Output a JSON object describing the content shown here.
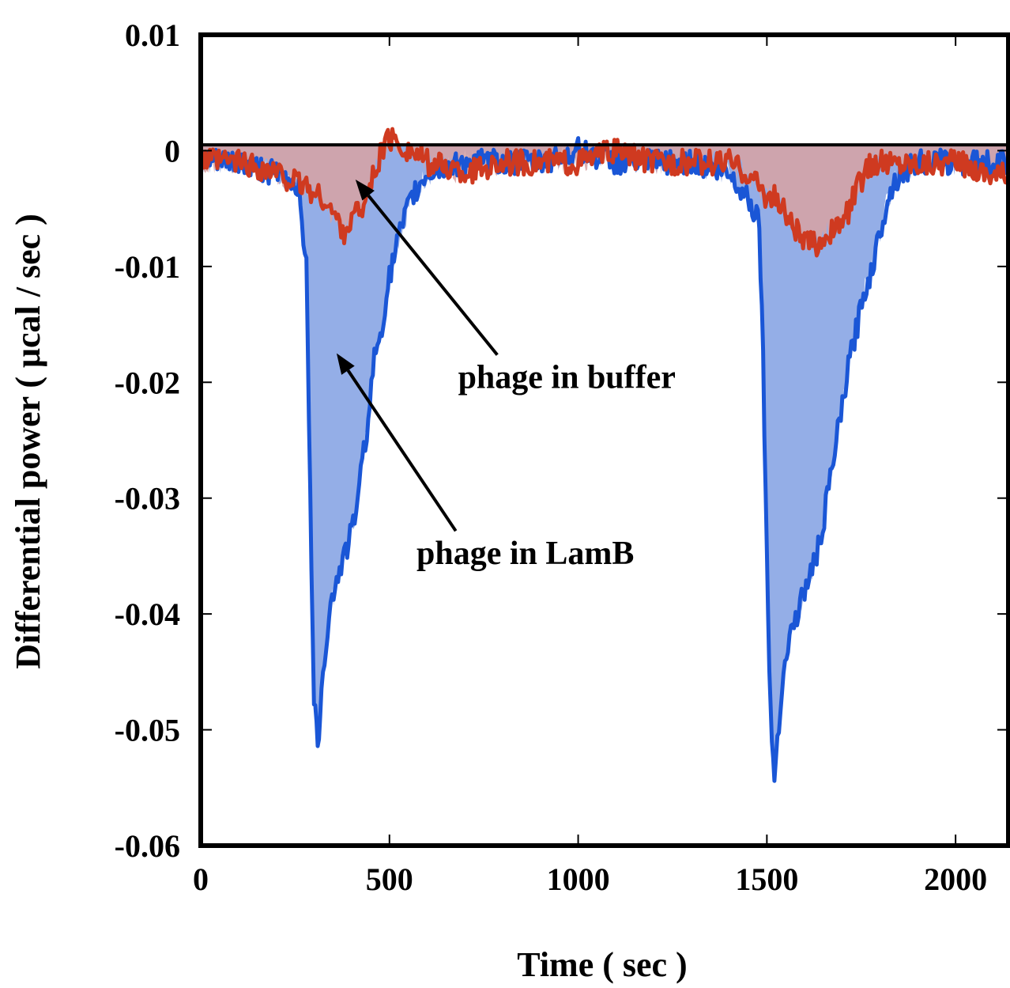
{
  "chart_data": {
    "type": "area",
    "xlabel": "Time ( sec )",
    "ylabel": "Differential power ( μcal / sec )",
    "xlim": [
      0,
      2140
    ],
    "ylim": [
      -0.06,
      0.01
    ],
    "xticks": [
      {
        "value": 0,
        "label": "0"
      },
      {
        "value": 500,
        "label": "500"
      },
      {
        "value": 1000,
        "label": "1000"
      },
      {
        "value": 1500,
        "label": "1500"
      },
      {
        "value": 2000,
        "label": "2000"
      }
    ],
    "yticks": [
      {
        "value": 0.01,
        "label": "0.01"
      },
      {
        "value": 0,
        "label": "0"
      },
      {
        "value": -0.01,
        "label": "-0.01"
      },
      {
        "value": -0.02,
        "label": "-0.02"
      },
      {
        "value": -0.03,
        "label": "-0.03"
      },
      {
        "value": -0.04,
        "label": "-0.04"
      },
      {
        "value": -0.05,
        "label": "-0.05"
      },
      {
        "value": -0.06,
        "label": "-0.06"
      }
    ],
    "baseline": 0.0005,
    "grid": false,
    "series": [
      {
        "name": "phage in LamB",
        "color": "#1a56d6",
        "fill": "#8eaae6",
        "x": [
          0,
          100,
          200,
          260,
          280,
          290,
          300,
          310,
          320,
          340,
          360,
          380,
          400,
          420,
          440,
          460,
          480,
          500,
          520,
          540,
          560,
          600,
          700,
          800,
          900,
          1000,
          1100,
          1200,
          1300,
          1400,
          1450,
          1480,
          1490,
          1500,
          1510,
          1520,
          1540,
          1560,
          1580,
          1600,
          1620,
          1640,
          1660,
          1680,
          1700,
          1720,
          1740,
          1760,
          1780,
          1800,
          1820,
          1850,
          1900,
          2000,
          2100,
          2140
        ],
        "values": [
          -0.001,
          -0.001,
          -0.002,
          -0.003,
          -0.01,
          -0.03,
          -0.047,
          -0.052,
          -0.046,
          -0.04,
          -0.037,
          -0.035,
          -0.033,
          -0.029,
          -0.024,
          -0.018,
          -0.015,
          -0.011,
          -0.008,
          -0.006,
          -0.004,
          -0.002,
          -0.001,
          -0.001,
          -0.001,
          0.0,
          -0.001,
          -0.001,
          -0.001,
          -0.002,
          -0.004,
          -0.006,
          -0.018,
          -0.035,
          -0.049,
          -0.054,
          -0.046,
          -0.042,
          -0.04,
          -0.038,
          -0.036,
          -0.034,
          -0.03,
          -0.026,
          -0.022,
          -0.018,
          -0.015,
          -0.012,
          -0.01,
          -0.007,
          -0.004,
          -0.002,
          -0.001,
          -0.001,
          -0.001,
          -0.001
        ]
      },
      {
        "name": "phage in buffer",
        "color": "#cf3a20",
        "fill": "#d8a2a2",
        "x": [
          0,
          100,
          200,
          260,
          280,
          300,
          320,
          340,
          360,
          380,
          400,
          420,
          440,
          460,
          480,
          500,
          550,
          600,
          700,
          800,
          900,
          1000,
          1100,
          1200,
          1300,
          1400,
          1450,
          1480,
          1500,
          1520,
          1540,
          1560,
          1580,
          1600,
          1620,
          1640,
          1660,
          1680,
          1700,
          1720,
          1740,
          1760,
          1780,
          1800,
          1850,
          1900,
          2000,
          2100,
          2140
        ],
        "values": [
          -0.001,
          -0.001,
          -0.002,
          -0.003,
          -0.003,
          -0.004,
          -0.004,
          -0.005,
          -0.006,
          -0.007,
          -0.006,
          -0.005,
          -0.004,
          -0.002,
          0.0,
          0.001,
          0.0,
          -0.001,
          -0.002,
          -0.001,
          -0.001,
          -0.001,
          0.0,
          -0.001,
          -0.001,
          -0.001,
          -0.002,
          -0.003,
          -0.004,
          -0.004,
          -0.005,
          -0.006,
          -0.007,
          -0.008,
          -0.008,
          -0.008,
          -0.007,
          -0.007,
          -0.006,
          -0.005,
          -0.003,
          -0.002,
          -0.001,
          -0.001,
          -0.001,
          -0.001,
          -0.001,
          -0.002,
          -0.002
        ]
      }
    ],
    "annotations": [
      {
        "text": "phage in buffer",
        "x": 970,
        "y": -0.0205,
        "arrow_to": {
          "x": 410,
          "y": -0.0025
        }
      },
      {
        "text": "phage in LamB",
        "x": 860,
        "y": -0.0357,
        "arrow_to": {
          "x": 360,
          "y": -0.0175
        }
      }
    ]
  }
}
